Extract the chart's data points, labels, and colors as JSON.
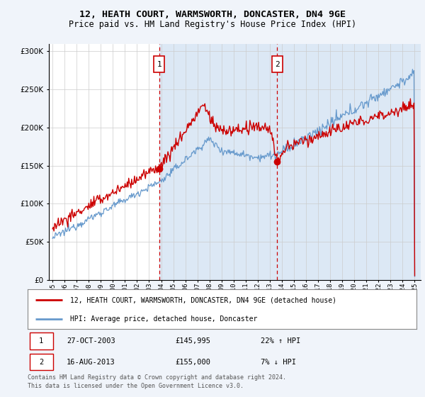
{
  "title1": "12, HEATH COURT, WARMSWORTH, DONCASTER, DN4 9GE",
  "title2": "Price paid vs. HM Land Registry's House Price Index (HPI)",
  "ytick_vals": [
    0,
    50000,
    100000,
    150000,
    200000,
    250000,
    300000
  ],
  "ylim": [
    0,
    310000
  ],
  "legend_line1": "12, HEATH COURT, WARMSWORTH, DONCASTER, DN4 9GE (detached house)",
  "legend_line2": "HPI: Average price, detached house, Doncaster",
  "sale1_date": "27-OCT-2003",
  "sale1_price": "£145,995",
  "sale1_hpi": "22% ↑ HPI",
  "sale1_year": 2003.83,
  "sale1_value": 145995,
  "sale2_date": "16-AUG-2013",
  "sale2_price": "£155,000",
  "sale2_hpi": "7% ↓ HPI",
  "sale2_year": 2013.62,
  "sale2_value": 155000,
  "footnote1": "Contains HM Land Registry data © Crown copyright and database right 2024.",
  "footnote2": "This data is licensed under the Open Government Licence v3.0.",
  "background_color": "#f0f4fa",
  "plot_bg_color": "#ffffff",
  "red_color": "#cc0000",
  "blue_color": "#6699cc",
  "shade_color": "#dce8f5",
  "xlim_left": 1994.7,
  "xlim_right": 2025.5
}
